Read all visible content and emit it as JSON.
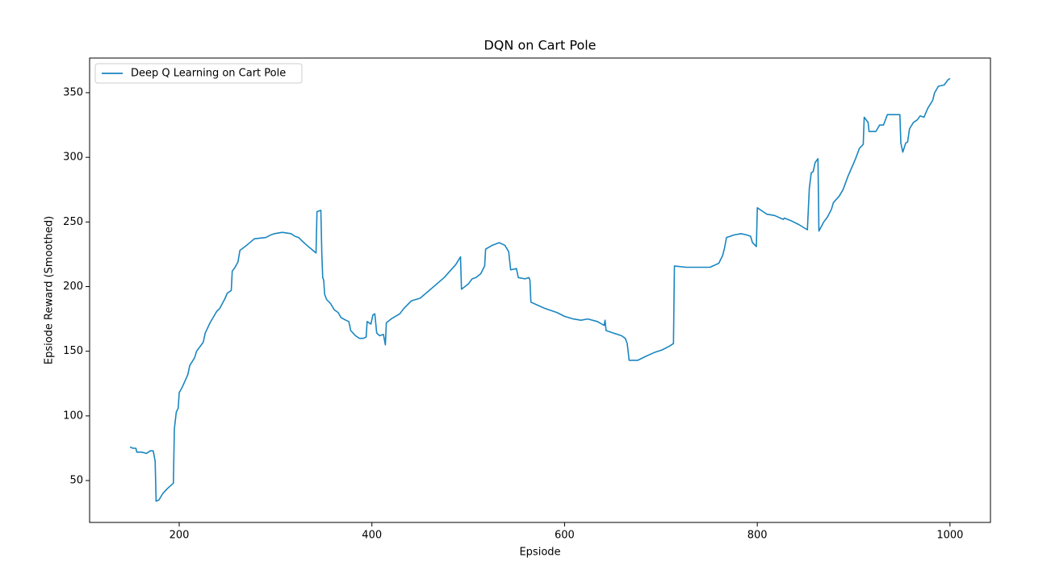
{
  "chart_data": {
    "type": "line",
    "title": "DQN on Cart Pole",
    "x_label": "Epsiode",
    "y_label": "Epsiode Reward (Smoothed)",
    "x": [
      149,
      152,
      155,
      156,
      161,
      166,
      170,
      173,
      175,
      176,
      179,
      183,
      188,
      194,
      195,
      197,
      199,
      200,
      203,
      206,
      209,
      211,
      216,
      218,
      225,
      227,
      232,
      239,
      242,
      247,
      250,
      254,
      255,
      258,
      261,
      263,
      270,
      278,
      290,
      295,
      299,
      307,
      316,
      320,
      324,
      328,
      334,
      342,
      343,
      347,
      348,
      349,
      350,
      351,
      353,
      357,
      361,
      365,
      368,
      373,
      376,
      378,
      383,
      387,
      391,
      394,
      395,
      399,
      401,
      403,
      405,
      408,
      412,
      414,
      415,
      420,
      429,
      433,
      441,
      450,
      458,
      475,
      487,
      492,
      493,
      500,
      504,
      508,
      513,
      517,
      518,
      525,
      532,
      538,
      542,
      544,
      550,
      552,
      559,
      563,
      564,
      565,
      571,
      580,
      592,
      600,
      609,
      617,
      624,
      634,
      641,
      642,
      643,
      651,
      659,
      663,
      665,
      667,
      676,
      684,
      693,
      701,
      709,
      713,
      714,
      726,
      743,
      751,
      760,
      764,
      766,
      768,
      776,
      783,
      789,
      793,
      795,
      799,
      800,
      806,
      810,
      818,
      827,
      828,
      835,
      843,
      852,
      854,
      856,
      858,
      860,
      863,
      864,
      869,
      873,
      877,
      879,
      885,
      889,
      894,
      898,
      902,
      906,
      910,
      911,
      915,
      916,
      923,
      927,
      931,
      935,
      948,
      949,
      951,
      954,
      956,
      958,
      962,
      966,
      969,
      973,
      977,
      982,
      984,
      988,
      994,
      998,
      1000
    ],
    "series": [
      {
        "name": "Deep Q Learning on Cart Pole",
        "color": "#1a86c0",
        "values": [
          76,
          75,
          75,
          72,
          72,
          71,
          73,
          73,
          65,
          34,
          35,
          40,
          44,
          48,
          90,
          103,
          106,
          118,
          122,
          127,
          132,
          139,
          145,
          150,
          157,
          164,
          172,
          181,
          183,
          190,
          195,
          197,
          212,
          215,
          219,
          228,
          232,
          237,
          238,
          240,
          241,
          242,
          241,
          239,
          238,
          235,
          231,
          226,
          258,
          259,
          225,
          207,
          205,
          194,
          190,
          187,
          182,
          180,
          176,
          174,
          173,
          166,
          162,
          160,
          160,
          161,
          173,
          171,
          178,
          179,
          164,
          162,
          163,
          155,
          172,
          175,
          179,
          183,
          189,
          191,
          196,
          207,
          217,
          223,
          198,
          202,
          206,
          207,
          210,
          216,
          229,
          232,
          234,
          232,
          227,
          213,
          214,
          207,
          206,
          207,
          205,
          188,
          186,
          183,
          180,
          177,
          175,
          174,
          175,
          173,
          170,
          174,
          166,
          164,
          162,
          160,
          156,
          143,
          143,
          146,
          149,
          151,
          154,
          156,
          216,
          215,
          215,
          215,
          218,
          224,
          230,
          238,
          240,
          241,
          240,
          239,
          234,
          231,
          261,
          258,
          256,
          255,
          252,
          253,
          251,
          248,
          244,
          276,
          288,
          289,
          296,
          299,
          243,
          250,
          254,
          260,
          265,
          270,
          275,
          285,
          292,
          299,
          307,
          310,
          331,
          327,
          320,
          320,
          325,
          325,
          333,
          333,
          311,
          304,
          311,
          312,
          322,
          327,
          329,
          332,
          331,
          338,
          344,
          350,
          355,
          356,
          360,
          361
        ]
      }
    ],
    "xlim": [
      107,
      1042
    ],
    "ylim": [
      17.6,
      376.8
    ],
    "xticks": [
      200,
      400,
      600,
      800,
      1000
    ],
    "yticks": [
      50,
      100,
      150,
      200,
      250,
      300,
      350
    ],
    "legend": "upper left",
    "grid": false
  }
}
